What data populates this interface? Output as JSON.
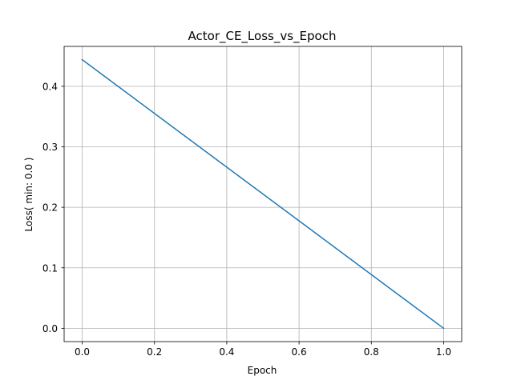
{
  "chart_data": {
    "type": "line",
    "title": "Actor_CE_Loss_vs_Epoch",
    "xlabel": "Epoch",
    "ylabel": "Loss( min: 0.0 )",
    "xlim": [
      -0.05,
      1.05
    ],
    "ylim": [
      -0.022,
      0.466
    ],
    "xticks": [
      0.0,
      0.2,
      0.4,
      0.6,
      0.8,
      1.0
    ],
    "xtick_labels": [
      "0.0",
      "0.2",
      "0.4",
      "0.6",
      "0.8",
      "1.0"
    ],
    "yticks": [
      0.0,
      0.1,
      0.2,
      0.3,
      0.4
    ],
    "ytick_labels": [
      "0.0",
      "0.1",
      "0.2",
      "0.3",
      "0.4"
    ],
    "grid": true,
    "series": [
      {
        "x": [
          0.0,
          1.0
        ],
        "y": [
          0.444,
          0.0
        ],
        "color": "#1f77b4"
      }
    ]
  }
}
